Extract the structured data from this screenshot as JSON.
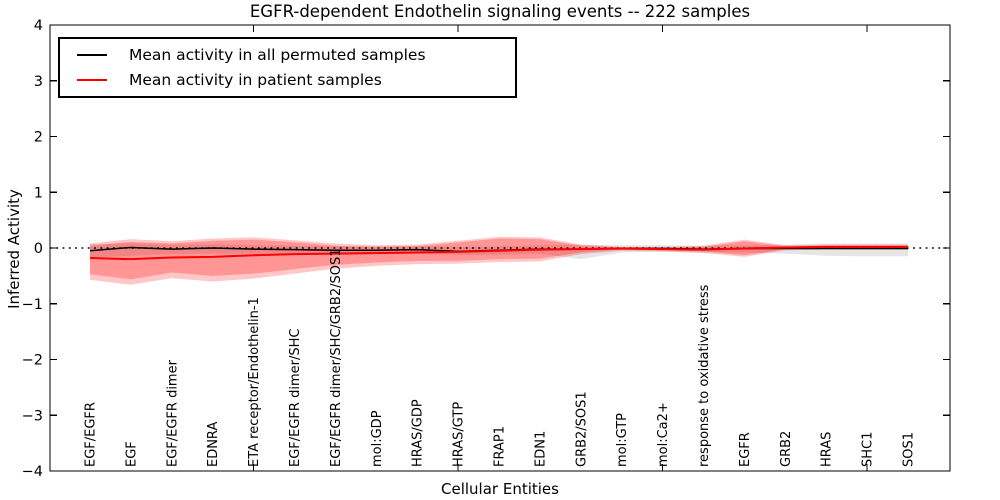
{
  "title": "EGFR-dependent Endothelin signaling events -- 222 samples",
  "legend": {
    "entries": [
      {
        "label": "Mean activity in all permuted samples",
        "color": "#000000"
      },
      {
        "label": "Mean activity in patient samples",
        "color": "#ff0000"
      }
    ]
  },
  "chart_data": {
    "type": "line",
    "title": "EGFR-dependent Endothelin signaling events -- 222 samples",
    "xlabel": "Cellular Entities",
    "ylabel": "Inferred Activity",
    "ylim": [
      -4,
      4
    ],
    "grid": false,
    "legend_position": "upper left",
    "zero_line_style": "dotted",
    "yticks": [
      {
        "v": 4,
        "label": "4"
      },
      {
        "v": 3,
        "label": "3"
      },
      {
        "v": 2,
        "label": "2"
      },
      {
        "v": 1,
        "label": "1"
      },
      {
        "v": 0,
        "label": "0"
      },
      {
        "v": -1,
        "label": "−1"
      },
      {
        "v": -2,
        "label": "−2"
      },
      {
        "v": -3,
        "label": "−3"
      },
      {
        "v": -4,
        "label": "−4"
      }
    ],
    "xtick_indices": [
      4,
      9,
      14,
      19
    ],
    "categories": [
      "EGF/EGFR",
      "EGF",
      "EGF/EGFR dimer",
      "EDNRA",
      "ETA receptor/Endothelin-1",
      "EGF/EGFR dimer/SHC",
      "EGF/EGFR dimer/SHC/GRB2/SOS1",
      "mol:GDP",
      "HRAS/GDP",
      "HRAS/GTP",
      "FRAP1",
      "EDN1",
      "GRB2/SOS1",
      "mol:GTP",
      "mol:Ca2+",
      "response to oxidative stress",
      "EGFR",
      "GRB2",
      "HRAS",
      "SHC1",
      "SOS1"
    ],
    "series": [
      {
        "name": "Mean activity in all permuted samples",
        "color": "#000000",
        "width": 1.5,
        "values": [
          -0.05,
          0.01,
          -0.02,
          0.0,
          -0.02,
          -0.03,
          -0.04,
          -0.04,
          -0.03,
          -0.06,
          -0.04,
          -0.02,
          -0.02,
          -0.01,
          -0.01,
          -0.02,
          -0.01,
          -0.01,
          -0.01,
          -0.01,
          -0.01
        ]
      },
      {
        "name": "Mean activity in patient samples",
        "color": "#ff0000",
        "width": 2,
        "values": [
          -0.18,
          -0.2,
          -0.17,
          -0.16,
          -0.13,
          -0.11,
          -0.1,
          -0.09,
          -0.08,
          -0.07,
          -0.05,
          -0.03,
          -0.02,
          -0.01,
          -0.02,
          -0.03,
          -0.01,
          0.01,
          0.02,
          0.02,
          0.02
        ]
      }
    ],
    "bands": [
      {
        "name": "permuted-std-band",
        "color": "rgba(0,0,0,0.10)",
        "top": [
          0.07,
          0.08,
          0.06,
          0.07,
          0.05,
          0.04,
          0.03,
          0.03,
          0.04,
          0.02,
          0.03,
          0.05,
          0.06,
          0.05,
          0.05,
          0.04,
          0.05,
          0.06,
          0.08,
          0.08,
          0.08
        ],
        "bottom": [
          -0.17,
          -0.14,
          -0.11,
          -0.1,
          -0.1,
          -0.1,
          -0.12,
          -0.12,
          -0.1,
          -0.13,
          -0.12,
          -0.1,
          -0.2,
          -0.08,
          -0.07,
          -0.08,
          -0.08,
          -0.1,
          -0.14,
          -0.15,
          -0.15
        ]
      },
      {
        "name": "patient-outer-band",
        "color": "rgba(255,0,0,0.22)",
        "top": [
          0.08,
          0.16,
          0.12,
          0.17,
          0.19,
          0.14,
          0.08,
          0.05,
          0.06,
          0.13,
          0.2,
          0.19,
          0.06,
          0.02,
          0.02,
          0.04,
          0.15,
          0.05,
          0.06,
          0.06,
          0.06
        ],
        "bottom": [
          -0.57,
          -0.66,
          -0.54,
          -0.6,
          -0.55,
          -0.46,
          -0.37,
          -0.32,
          -0.29,
          -0.28,
          -0.25,
          -0.24,
          -0.11,
          -0.05,
          -0.06,
          -0.09,
          -0.16,
          -0.04,
          -0.03,
          -0.03,
          -0.03
        ]
      },
      {
        "name": "patient-inner-band",
        "color": "rgba(255,0,0,0.25)",
        "top": [
          0.04,
          0.11,
          0.08,
          0.13,
          0.15,
          0.1,
          0.04,
          0.02,
          0.03,
          0.1,
          0.17,
          0.16,
          0.04,
          0.01,
          0.01,
          0.02,
          0.12,
          0.03,
          0.04,
          0.04,
          0.04
        ],
        "bottom": [
          -0.47,
          -0.56,
          -0.44,
          -0.5,
          -0.46,
          -0.38,
          -0.3,
          -0.26,
          -0.23,
          -0.23,
          -0.2,
          -0.19,
          -0.08,
          -0.03,
          -0.04,
          -0.06,
          -0.13,
          -0.02,
          -0.01,
          -0.01,
          -0.01
        ]
      }
    ]
  }
}
